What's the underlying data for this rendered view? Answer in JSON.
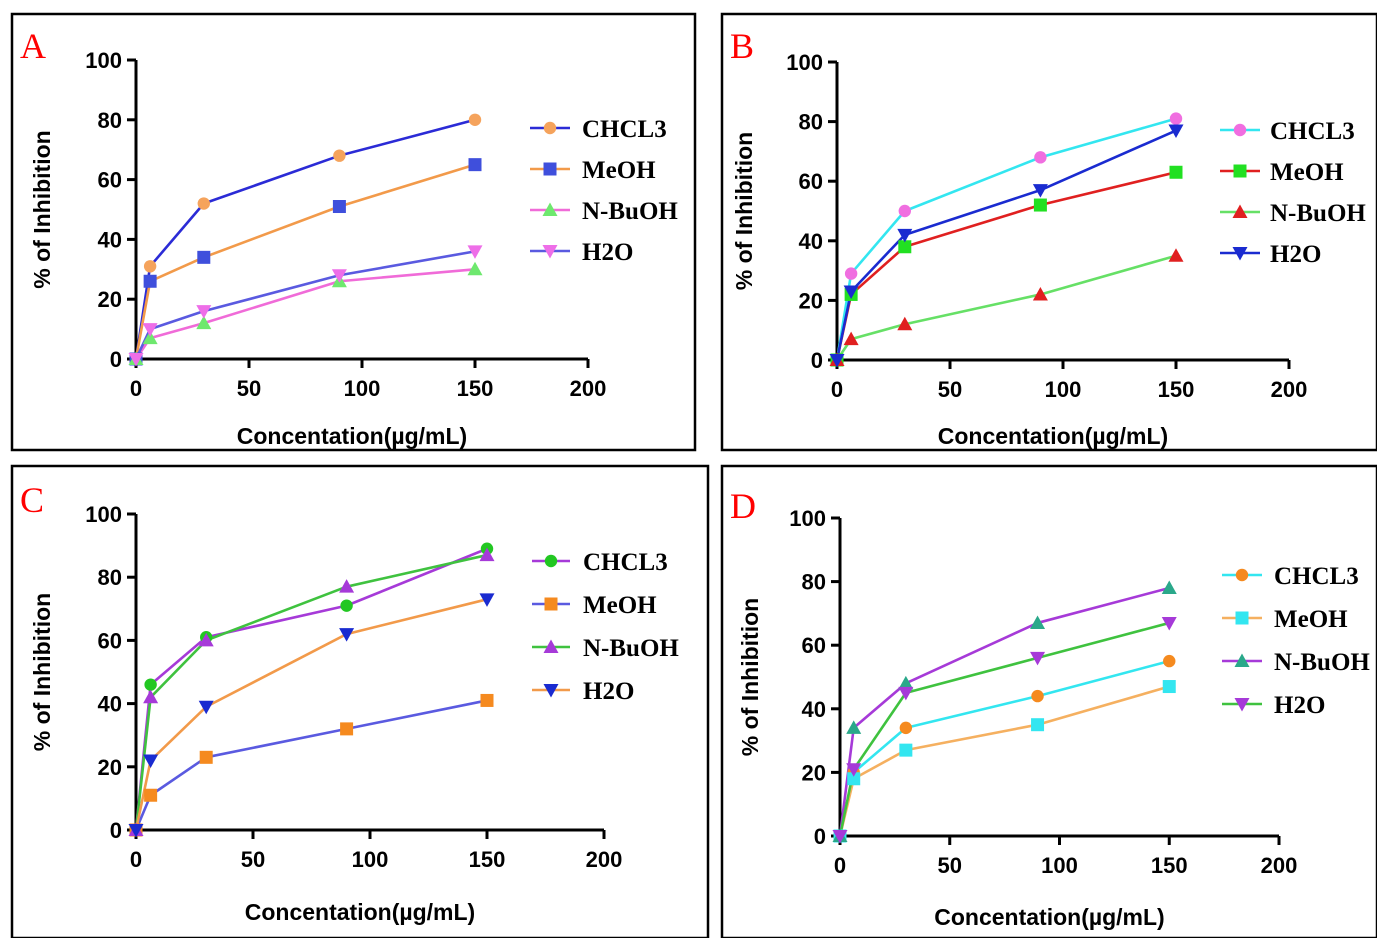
{
  "chart_data": [
    {
      "type": "line",
      "panel_label": "A",
      "xlabel": "Concentation(µg/mL)",
      "ylabel": "% of Inhibition",
      "xlim": [
        0,
        200
      ],
      "ylim": [
        0,
        100
      ],
      "xticks": [
        0,
        50,
        100,
        150,
        200
      ],
      "yticks": [
        0,
        20,
        40,
        60,
        80,
        100
      ],
      "legend_position": "right",
      "x": [
        0,
        6.25,
        30,
        90,
        150
      ],
      "series": [
        {
          "name": "CHCL3",
          "values": [
            0,
            31,
            52,
            68,
            80
          ],
          "marker": "circle",
          "marker_color": "#f5a35c",
          "line_color": "#2b2bd6"
        },
        {
          "name": "MeOH",
          "values": [
            0,
            26,
            34,
            51,
            65
          ],
          "marker": "square",
          "marker_color": "#3f4fdc",
          "line_color": "#f29a4a"
        },
        {
          "name": "N-BuOH",
          "values": [
            0,
            7,
            12,
            26,
            30
          ],
          "marker": "triangle-up",
          "marker_color": "#6ee86e",
          "line_color": "#f06bd8"
        },
        {
          "name": "H2O",
          "values": [
            0,
            10,
            16,
            28,
            36
          ],
          "marker": "triangle-down",
          "marker_color": "#ee6ee8",
          "line_color": "#5a5ae0"
        }
      ]
    },
    {
      "type": "line",
      "panel_label": "B",
      "xlabel": "Concentation(µg/mL)",
      "ylabel": "% of Inhibition",
      "xlim": [
        0,
        200
      ],
      "ylim": [
        0,
        100
      ],
      "xticks": [
        0,
        50,
        100,
        150,
        200
      ],
      "yticks": [
        0,
        20,
        40,
        60,
        80,
        100
      ],
      "legend_position": "right",
      "x": [
        0,
        6.25,
        30,
        90,
        150
      ],
      "series": [
        {
          "name": "CHCL3",
          "values": [
            0,
            29,
            50,
            68,
            81
          ],
          "marker": "circle",
          "marker_color": "#f06ee0",
          "line_color": "#33e6f0"
        },
        {
          "name": "MeOH",
          "values": [
            0,
            22,
            38,
            52,
            63
          ],
          "marker": "square",
          "marker_color": "#22e022",
          "line_color": "#e02020"
        },
        {
          "name": "N-BuOH",
          "values": [
            0,
            7,
            12,
            22,
            35
          ],
          "marker": "triangle-up",
          "marker_color": "#e02020",
          "line_color": "#66e066"
        },
        {
          "name": "H2O",
          "values": [
            0,
            23,
            42,
            57,
            77
          ],
          "marker": "triangle-down",
          "marker_color": "#1a2bd0",
          "line_color": "#1a2bd0"
        }
      ]
    },
    {
      "type": "line",
      "panel_label": "C",
      "xlabel": "Concentation(µg/mL)",
      "ylabel": "% of Inhibition",
      "xlim": [
        0,
        200
      ],
      "ylim": [
        0,
        100
      ],
      "xticks": [
        0,
        50,
        100,
        150,
        200
      ],
      "yticks": [
        0,
        20,
        40,
        60,
        80,
        100
      ],
      "legend_position": "right",
      "x": [
        0,
        6.25,
        30,
        90,
        150
      ],
      "series": [
        {
          "name": "CHCL3",
          "values": [
            0,
            46,
            61,
            71,
            89
          ],
          "marker": "circle",
          "marker_color": "#22c722",
          "line_color": "#a63ad8"
        },
        {
          "name": "MeOH",
          "values": [
            0,
            11,
            23,
            32,
            41
          ],
          "marker": "square",
          "marker_color": "#f58a1f",
          "line_color": "#5a5ae0"
        },
        {
          "name": "N-BuOH",
          "values": [
            0,
            42,
            60,
            77,
            87
          ],
          "marker": "triangle-up",
          "marker_color": "#a63ad8",
          "line_color": "#3fc23f"
        },
        {
          "name": "H2O",
          "values": [
            0,
            22,
            39,
            62,
            73
          ],
          "marker": "triangle-down",
          "marker_color": "#1a2bd0",
          "line_color": "#f29a4a"
        }
      ]
    },
    {
      "type": "line",
      "panel_label": "D",
      "xlabel": "Concentation(µg/mL)",
      "ylabel": "% of Inhibition",
      "xlim": [
        0,
        200
      ],
      "ylim": [
        0,
        100
      ],
      "xticks": [
        0,
        50,
        100,
        150,
        200
      ],
      "yticks": [
        0,
        20,
        40,
        60,
        80,
        100
      ],
      "legend_position": "right",
      "x": [
        0,
        6.25,
        30,
        90,
        150
      ],
      "series": [
        {
          "name": "CHCL3",
          "values": [
            0,
            20,
            34,
            44,
            55
          ],
          "marker": "circle",
          "marker_color": "#f58a1f",
          "line_color": "#33e6f0"
        },
        {
          "name": "MeOH",
          "values": [
            0,
            18,
            27,
            35,
            47
          ],
          "marker": "square",
          "marker_color": "#33e6f0",
          "line_color": "#f5b060"
        },
        {
          "name": "N-BuOH",
          "values": [
            0,
            34,
            48,
            67,
            78
          ],
          "marker": "triangle-up",
          "marker_color": "#2aa88a",
          "line_color": "#a63ad8"
        },
        {
          "name": "H2O",
          "values": [
            0,
            21,
            45,
            56,
            67
          ],
          "marker": "triangle-down",
          "marker_color": "#a63ad8",
          "line_color": "#3fc23f"
        }
      ]
    }
  ]
}
